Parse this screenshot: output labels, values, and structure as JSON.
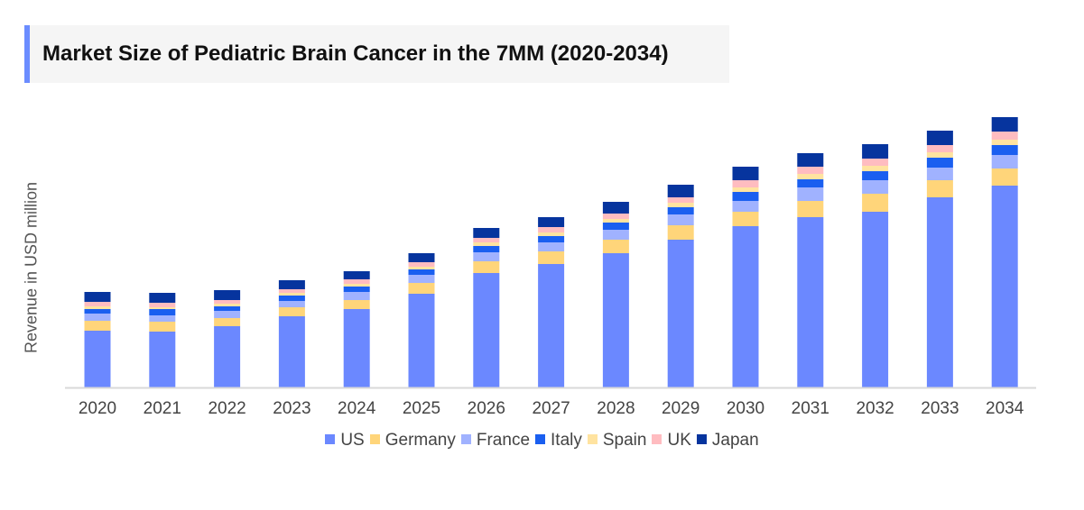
{
  "chart_data": {
    "type": "bar",
    "stacked": true,
    "title": "Market Size of Pediatric Brain Cancer in the 7MM (2020-2034)",
    "xlabel": "",
    "ylabel": "Revenue in USD million",
    "ylim": [
      0,
      330
    ],
    "grid": false,
    "legend_position": "bottom",
    "categories": [
      "2020",
      "2021",
      "2022",
      "2023",
      "2024",
      "2025",
      "2026",
      "2027",
      "2028",
      "2029",
      "2030",
      "2031",
      "2032",
      "2033",
      "2034"
    ],
    "series": [
      {
        "name": "US",
        "color": "#6b88ff",
        "values": [
          63,
          62,
          68,
          79,
          87,
          104,
          127,
          137,
          149,
          164,
          179,
          189,
          195,
          211,
          224
        ]
      },
      {
        "name": "Germany",
        "color": "#ffd57a",
        "values": [
          11,
          11,
          9,
          10,
          10,
          12,
          13,
          14,
          15,
          16,
          16,
          18,
          20,
          19,
          19
        ]
      },
      {
        "name": "France",
        "color": "#a0b2ff",
        "values": [
          8,
          7,
          8,
          7,
          9,
          9,
          10,
          10,
          11,
          12,
          12,
          15,
          15,
          14,
          15
        ]
      },
      {
        "name": "Italy",
        "color": "#1a5ff0",
        "values": [
          5,
          7,
          5,
          6,
          6,
          6,
          7,
          7,
          8,
          8,
          10,
          9,
          10,
          11,
          11
        ]
      },
      {
        "name": "Spain",
        "color": "#ffe3a0",
        "values": [
          3,
          2,
          3,
          3,
          3,
          3,
          4,
          4,
          4,
          5,
          5,
          6,
          6,
          6,
          6
        ]
      },
      {
        "name": "UK",
        "color": "#ffbcc0",
        "values": [
          5,
          5,
          4,
          4,
          5,
          5,
          5,
          6,
          6,
          6,
          8,
          8,
          8,
          8,
          9
        ]
      },
      {
        "name": "Japan",
        "color": "#06349e",
        "values": [
          11,
          11,
          11,
          10,
          9,
          10,
          11,
          11,
          13,
          14,
          15,
          15,
          16,
          16,
          16
        ]
      }
    ]
  }
}
